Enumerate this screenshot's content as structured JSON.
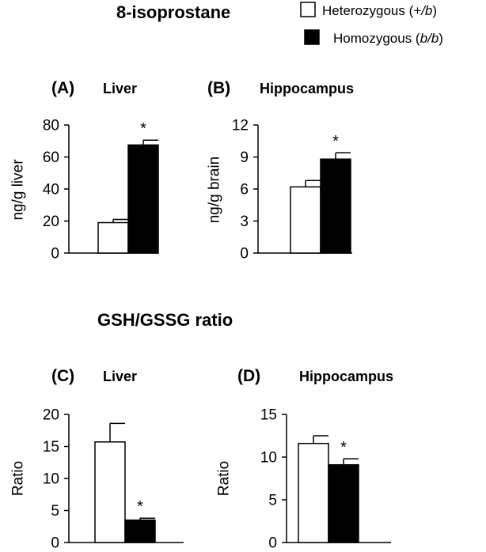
{
  "figure": {
    "title_top": "8-isoprostane",
    "title_bottom": "GSH/GSSG ratio",
    "legend": [
      {
        "prefix": "Heterozygous (",
        "italic": "+/b",
        "suffix": ")",
        "fill": "#ffffff"
      },
      {
        "prefix": "Homozygous (",
        "italic": "b/b",
        "suffix": ")",
        "fill": "#000000"
      }
    ]
  },
  "chart_data": [
    {
      "type": "bar",
      "panel": "(A)",
      "title": "Liver",
      "ylabel": "ng/g liver",
      "ylim": [
        0,
        80
      ],
      "yticks": [
        "0",
        "20",
        "40",
        "60",
        "80"
      ],
      "categories": [
        "Heterozygous (+/b)",
        "Homozygous (b/b)"
      ],
      "values": [
        19,
        67.5
      ],
      "errors": [
        2,
        3
      ],
      "annotations": [
        "",
        "*"
      ],
      "colors": [
        "#ffffff",
        "#000000"
      ]
    },
    {
      "type": "bar",
      "panel": "(B)",
      "title": "Hippocampus",
      "ylabel": "ng/g brain",
      "ylim": [
        0,
        12
      ],
      "yticks": [
        "0",
        "3",
        "6",
        "9",
        "12"
      ],
      "categories": [
        "Heterozygous (+/b)",
        "Homozygous (b/b)"
      ],
      "values": [
        6.2,
        8.8
      ],
      "errors": [
        0.6,
        0.6
      ],
      "annotations": [
        "",
        "*"
      ],
      "colors": [
        "#ffffff",
        "#000000"
      ]
    },
    {
      "type": "bar",
      "panel": "(C)",
      "title": "Liver",
      "ylabel": "Ratio",
      "ylim": [
        0,
        20
      ],
      "yticks": [
        "0",
        "5",
        "10",
        "15",
        "20"
      ],
      "categories": [
        "Heterozygous (+/b)",
        "Homozygous (b/b)"
      ],
      "values": [
        15.7,
        3.5
      ],
      "errors": [
        2.9,
        0.3
      ],
      "annotations": [
        "",
        "*"
      ],
      "colors": [
        "#ffffff",
        "#000000"
      ]
    },
    {
      "type": "bar",
      "panel": "(D)",
      "title": "Hippocampus",
      "ylabel": "Ratio",
      "ylim": [
        0,
        15
      ],
      "yticks": [
        "0",
        "5",
        "10",
        "15"
      ],
      "categories": [
        "Heterozygous (+/b)",
        "Homozygous (b/b)"
      ],
      "values": [
        11.6,
        9.1
      ],
      "errors": [
        0.9,
        0.7
      ],
      "annotations": [
        "",
        "*"
      ],
      "colors": [
        "#ffffff",
        "#000000"
      ]
    }
  ]
}
